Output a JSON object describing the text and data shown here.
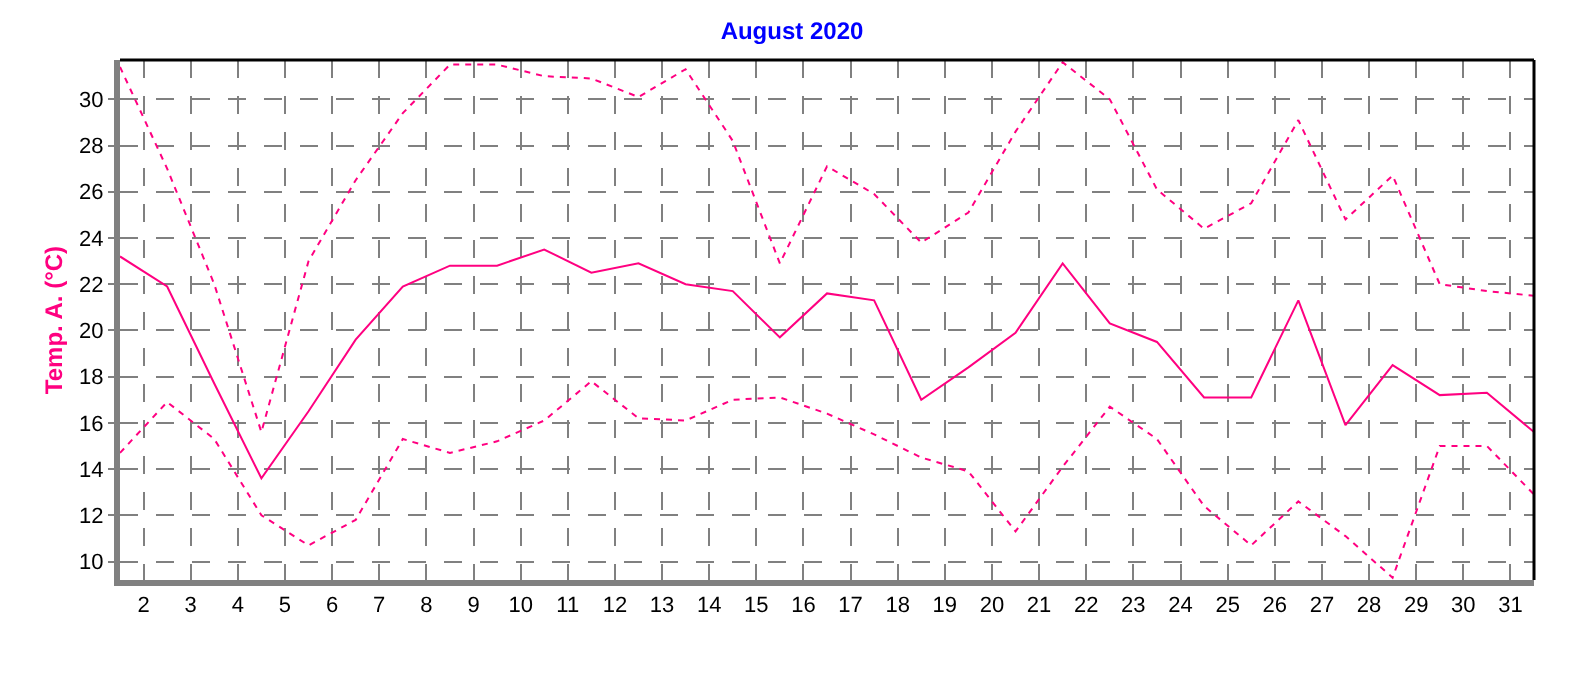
{
  "chart_data": {
    "type": "line",
    "title": "August 2020",
    "ylabel": "Temp. A. (°C)",
    "x": [
      1.5,
      2.5,
      3.5,
      4.5,
      5.5,
      6.5,
      7.5,
      8.5,
      9.5,
      10.5,
      11.5,
      12.5,
      13.5,
      14.5,
      15.5,
      16.5,
      17.5,
      18.5,
      19.5,
      20.5,
      21.5,
      22.5,
      23.5,
      24.5,
      25.5,
      26.5,
      27.5,
      28.5,
      29.5,
      30.5,
      31.5
    ],
    "series": [
      {
        "color": "#ff0080",
        "line_style": "dotted",
        "values": [
          31.4,
          27.0,
          22.0,
          15.6,
          23.0,
          26.5,
          29.4,
          31.5,
          31.5,
          31.0,
          30.9,
          30.1,
          31.3,
          28.2,
          22.9,
          27.1,
          25.9,
          23.8,
          25.1,
          28.6,
          31.6,
          30.0,
          26.1,
          24.4,
          25.5,
          29.1,
          24.8,
          26.7,
          22.0,
          21.7,
          21.5
        ]
      },
      {
        "color": "#ff0080",
        "line_style": "solid",
        "values": [
          23.2,
          21.9,
          17.7,
          13.6,
          16.5,
          19.6,
          21.9,
          22.8,
          22.8,
          23.5,
          22.5,
          22.9,
          22.0,
          21.7,
          19.7,
          21.6,
          21.3,
          17.0,
          18.4,
          19.9,
          22.9,
          20.3,
          19.5,
          17.1,
          17.1,
          21.3,
          15.9,
          18.5,
          17.2,
          17.3,
          15.6
        ]
      },
      {
        "color": "#ff0080",
        "line_style": "dotted",
        "values": [
          14.7,
          16.9,
          15.3,
          12.0,
          10.7,
          11.8,
          15.3,
          14.7,
          15.2,
          16.1,
          17.8,
          16.2,
          16.1,
          17.0,
          17.1,
          16.4,
          15.5,
          14.5,
          13.9,
          11.3,
          14.1,
          16.7,
          15.3,
          12.4,
          10.7,
          12.6,
          11.1,
          9.3,
          15.0,
          15.0,
          12.9
        ]
      }
    ],
    "xlim": [
      1.5,
      31.5
    ],
    "xticks": [
      2,
      3,
      4,
      5,
      6,
      7,
      8,
      9,
      10,
      11,
      12,
      13,
      14,
      15,
      16,
      17,
      18,
      19,
      20,
      21,
      22,
      23,
      24,
      25,
      26,
      27,
      28,
      29,
      30,
      31
    ],
    "ylim": [
      9.2,
      31.7
    ],
    "yticks": [
      10,
      12,
      14,
      16,
      18,
      20,
      22,
      24,
      26,
      28,
      30
    ],
    "grid": true,
    "marker": "none"
  }
}
